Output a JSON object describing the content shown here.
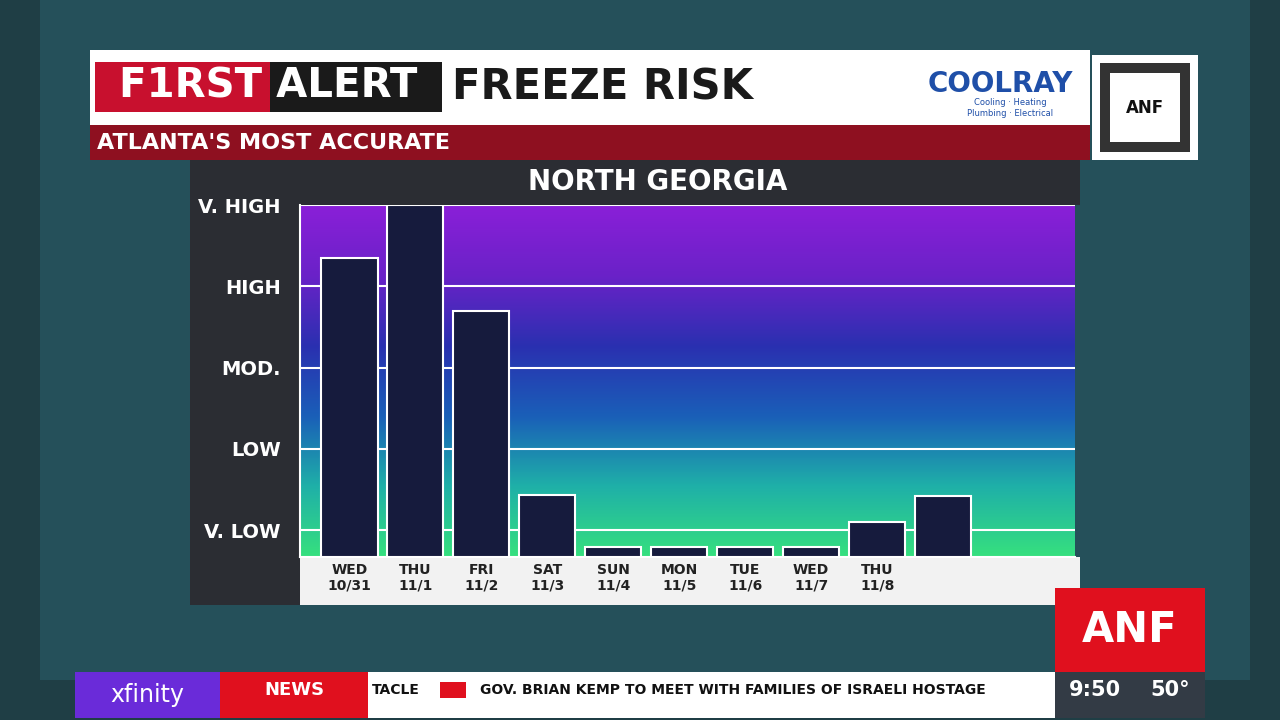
{
  "chart_data": {
    "type": "bar",
    "title": "NORTH GEORGIA",
    "categories": [
      "WED\n10/31",
      "THU\n11/1",
      "FRI\n11/2",
      "SAT\n11/3",
      "SUN\n11/4",
      "MON\n11/5",
      "TUE\n11/6",
      "WED\n11/7",
      "THU\n11/8",
      null
    ],
    "values": [
      4.35,
      5.0,
      3.7,
      1.43,
      0.79,
      0.79,
      0.79,
      0.79,
      1.1,
      1.42
    ],
    "color": "#161b3d",
    "ylim": [
      0.67,
      5.0
    ],
    "yticks": [
      {
        "value": 1,
        "label": "V. LOW"
      },
      {
        "value": 2,
        "label": "LOW"
      },
      {
        "value": 3,
        "label": "MOD."
      },
      {
        "value": 4,
        "label": "HIGH"
      },
      {
        "value": 5,
        "label": "V. HIGH"
      }
    ],
    "grid": true
  },
  "header": {
    "brand": "F1RST ALERT",
    "title": "FREEZE RISK",
    "tagline": "ATLANTA'S MOST ACCURATE"
  },
  "sponsor": {
    "name": "COOLRAY",
    "services": "Cooling · Heating\nPlumbing · Electrical",
    "qr_label": "ANF"
  },
  "lower_third": {
    "logo": "ANF",
    "provider": "xfinity",
    "section": "NEWS",
    "ticker": [
      "TACLE",
      "GOV. BRIAN KEMP TO MEET WITH FAMILIES OF ISRAELI HOSTAGE"
    ],
    "time": "9:50",
    "temperature": "50°"
  }
}
